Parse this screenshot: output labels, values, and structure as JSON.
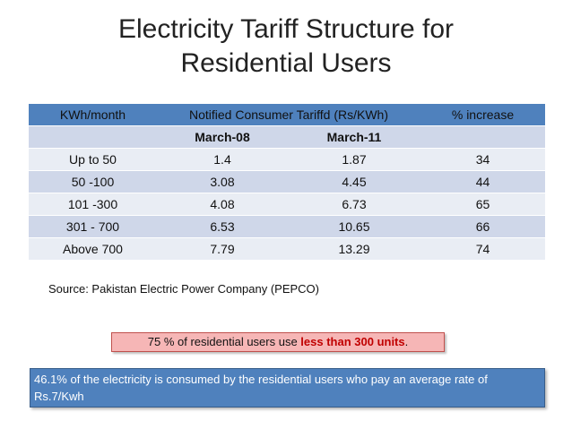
{
  "title": {
    "line1": "Electricity Tariff Structure for",
    "line2": "Residential Users"
  },
  "table": {
    "headers": {
      "kwh": "KWh/month",
      "tariff": "Notified Consumer Tariffd (Rs/KWh)",
      "increase": "% increase"
    },
    "subheaders": {
      "col1": "",
      "march08": "March-08",
      "march11": "March-11",
      "col4": ""
    },
    "rows": [
      {
        "kwh": "Up to 50",
        "march08": "1.4",
        "march11": "1.87",
        "increase": "34"
      },
      {
        "kwh": "50 -100",
        "march08": "3.08",
        "march11": "4.45",
        "increase": "44"
      },
      {
        "kwh": "101 -300",
        "march08": "4.08",
        "march11": "6.73",
        "increase": "65"
      },
      {
        "kwh": "301 - 700",
        "march08": "6.53",
        "march11": "10.65",
        "increase": "66"
      },
      {
        "kwh": "Above 700",
        "march08": "7.79",
        "march11": "13.29",
        "increase": "74"
      }
    ]
  },
  "source": "Source: Pakistan Electric Power Company (PEPCO)",
  "note": {
    "prefix": "75 % of residential users use ",
    "highlight": "less than 300 units",
    "suffix": "."
  },
  "summary": "46.1% of the electricity is consumed by the residential users who pay an average rate of Rs.7/Kwh",
  "colors": {
    "header_blue": "#4f81bd",
    "row_mid": "#cfd7e9",
    "row_light": "#e9edf4",
    "note_fill": "#f6b6b6",
    "highlight_red": "#c00000"
  }
}
